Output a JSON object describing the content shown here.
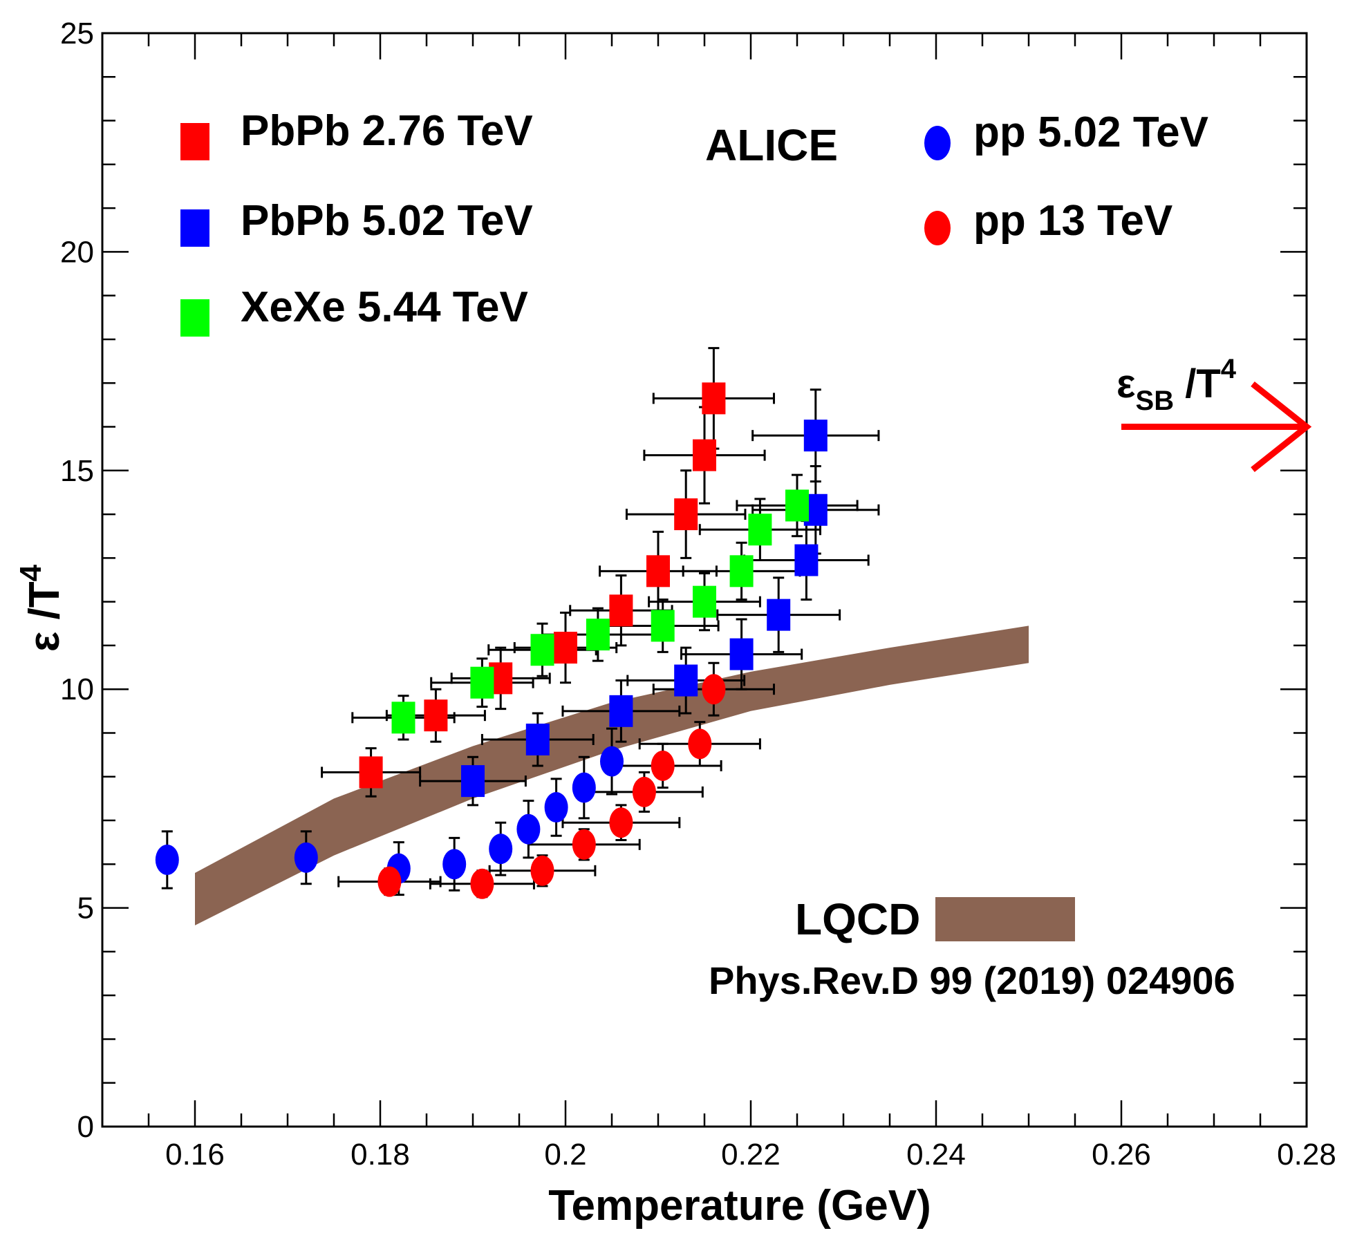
{
  "chart_data": {
    "type": "scatter",
    "xlabel": "Temperature (GeV)",
    "ylabel_main": "ε /T",
    "ylabel_sup": "4",
    "xlim": [
      0.15,
      0.28
    ],
    "ylim": [
      0,
      25
    ],
    "x_ticks": [
      0.16,
      0.18,
      0.2,
      0.22,
      0.24,
      0.26,
      0.28
    ],
    "x_tick_labels": [
      "0.16",
      "0.18",
      "0.2",
      "0.22",
      "0.24",
      "0.26",
      "0.28"
    ],
    "y_ticks": [
      0,
      5,
      10,
      15,
      20,
      25
    ],
    "y_tick_labels": [
      "0",
      "5",
      "10",
      "15",
      "20",
      "25"
    ],
    "annotation_alice": "ALICE",
    "sb_label": {
      "main": "ε",
      "sub": "SB",
      "tail": " /T",
      "sup": "4",
      "y": 16.0,
      "color": "#1a1aff",
      "arrow_color": "#ff0000"
    },
    "lqcd": {
      "label": "LQCD",
      "reference": "Phys.Rev.D 99 (2019) 024906",
      "color": "#8b6452",
      "x": [
        0.16,
        0.175,
        0.19,
        0.205,
        0.22,
        0.235,
        0.25
      ],
      "upper": [
        5.8,
        7.5,
        8.7,
        9.7,
        10.4,
        10.95,
        11.45
      ],
      "lower": [
        4.6,
        6.2,
        7.5,
        8.6,
        9.5,
        10.1,
        10.6
      ]
    },
    "series": [
      {
        "name": "PbPb 2.76 TeV",
        "marker": "square",
        "color": "#ff0000",
        "points": [
          {
            "x": 0.179,
            "y": 8.1,
            "xerr": 0.0053,
            "yerr": 0.55
          },
          {
            "x": 0.186,
            "y": 9.4,
            "xerr": 0.0053,
            "yerr": 0.6
          },
          {
            "x": 0.193,
            "y": 10.25,
            "xerr": 0.0053,
            "yerr": 0.7
          },
          {
            "x": 0.2,
            "y": 10.95,
            "xerr": 0.0055,
            "yerr": 0.8
          },
          {
            "x": 0.206,
            "y": 11.8,
            "xerr": 0.0055,
            "yerr": 0.8
          },
          {
            "x": 0.21,
            "y": 12.7,
            "xerr": 0.0063,
            "yerr": 0.9
          },
          {
            "x": 0.213,
            "y": 14.0,
            "xerr": 0.0064,
            "yerr": 1.0
          },
          {
            "x": 0.215,
            "y": 15.35,
            "xerr": 0.0065,
            "yerr": 1.1
          },
          {
            "x": 0.216,
            "y": 16.65,
            "xerr": 0.0065,
            "yerr": 1.15
          }
        ]
      },
      {
        "name": "PbPb 5.02 TeV",
        "marker": "square",
        "color": "#0000ff",
        "points": [
          {
            "x": 0.19,
            "y": 7.9,
            "xerr": 0.0057,
            "yerr": 0.55
          },
          {
            "x": 0.197,
            "y": 8.85,
            "xerr": 0.006,
            "yerr": 0.6
          },
          {
            "x": 0.206,
            "y": 9.5,
            "xerr": 0.0063,
            "yerr": 0.7
          },
          {
            "x": 0.213,
            "y": 10.2,
            "xerr": 0.0063,
            "yerr": 0.75
          },
          {
            "x": 0.219,
            "y": 10.8,
            "xerr": 0.0065,
            "yerr": 0.8
          },
          {
            "x": 0.223,
            "y": 11.7,
            "xerr": 0.0066,
            "yerr": 0.85
          },
          {
            "x": 0.226,
            "y": 12.95,
            "xerr": 0.0067,
            "yerr": 0.9
          },
          {
            "x": 0.227,
            "y": 14.1,
            "xerr": 0.0068,
            "yerr": 1.0
          },
          {
            "x": 0.227,
            "y": 15.8,
            "xerr": 0.0068,
            "yerr": 1.05
          }
        ]
      },
      {
        "name": "XeXe 5.44 TeV",
        "marker": "square",
        "color": "#00ff00",
        "points": [
          {
            "x": 0.1825,
            "y": 9.35,
            "xerr": 0.0055,
            "yerr": 0.5
          },
          {
            "x": 0.191,
            "y": 10.15,
            "xerr": 0.0055,
            "yerr": 0.55
          },
          {
            "x": 0.1975,
            "y": 10.9,
            "xerr": 0.0058,
            "yerr": 0.6
          },
          {
            "x": 0.2035,
            "y": 11.25,
            "xerr": 0.006,
            "yerr": 0.6
          },
          {
            "x": 0.2105,
            "y": 11.45,
            "xerr": 0.006,
            "yerr": 0.6
          },
          {
            "x": 0.215,
            "y": 12.0,
            "xerr": 0.006,
            "yerr": 0.65
          },
          {
            "x": 0.219,
            "y": 12.7,
            "xerr": 0.0063,
            "yerr": 0.65
          },
          {
            "x": 0.221,
            "y": 13.65,
            "xerr": 0.0065,
            "yerr": 0.7
          },
          {
            "x": 0.225,
            "y": 14.2,
            "xerr": 0.0065,
            "yerr": 0.7
          }
        ]
      },
      {
        "name": "pp 5.02 TeV",
        "marker": "circle",
        "color": "#0000ff",
        "points": [
          {
            "x": 0.157,
            "y": 6.1,
            "xerr": 0.0,
            "yerr": 0.65
          },
          {
            "x": 0.172,
            "y": 6.15,
            "xerr": 0.0,
            "yerr": 0.6
          },
          {
            "x": 0.182,
            "y": 5.9,
            "xerr": 0.0,
            "yerr": 0.6
          },
          {
            "x": 0.188,
            "y": 6.0,
            "xerr": 0.0,
            "yerr": 0.6
          },
          {
            "x": 0.193,
            "y": 6.35,
            "xerr": 0.0,
            "yerr": 0.6
          },
          {
            "x": 0.196,
            "y": 6.8,
            "xerr": 0.0,
            "yerr": 0.65
          },
          {
            "x": 0.199,
            "y": 7.3,
            "xerr": 0.0,
            "yerr": 0.65
          },
          {
            "x": 0.202,
            "y": 7.75,
            "xerr": 0.0,
            "yerr": 0.7
          },
          {
            "x": 0.205,
            "y": 8.35,
            "xerr": 0.0,
            "yerr": 0.75
          }
        ]
      },
      {
        "name": "pp 13 TeV",
        "marker": "circle",
        "color": "#ff0000",
        "points": [
          {
            "x": 0.181,
            "y": 5.6,
            "xerr": 0.0055,
            "yerr": 0.3
          },
          {
            "x": 0.191,
            "y": 5.55,
            "xerr": 0.0056,
            "yerr": 0.3
          },
          {
            "x": 0.1975,
            "y": 5.85,
            "xerr": 0.0057,
            "yerr": 0.35
          },
          {
            "x": 0.202,
            "y": 6.45,
            "xerr": 0.006,
            "yerr": 0.35
          },
          {
            "x": 0.206,
            "y": 6.95,
            "xerr": 0.0063,
            "yerr": 0.4
          },
          {
            "x": 0.2085,
            "y": 7.65,
            "xerr": 0.0063,
            "yerr": 0.45
          },
          {
            "x": 0.2105,
            "y": 8.25,
            "xerr": 0.0063,
            "yerr": 0.5
          },
          {
            "x": 0.2145,
            "y": 8.75,
            "xerr": 0.0065,
            "yerr": 0.5
          },
          {
            "x": 0.216,
            "y": 10.0,
            "xerr": 0.0065,
            "yerr": 0.6
          }
        ]
      }
    ]
  }
}
